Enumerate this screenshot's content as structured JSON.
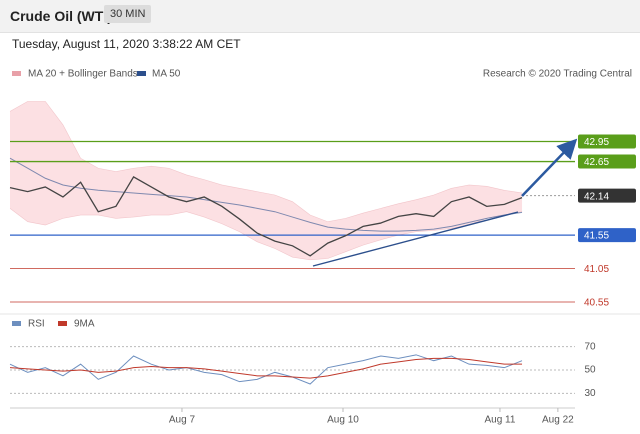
{
  "header": {
    "title": "Crude Oil (WTI)",
    "interval": "30 MIN",
    "timestamp": "Tuesday, August 11, 2020 3:38:22 AM CET",
    "credit": "Research © 2020 Trading Central"
  },
  "chart_data": [
    {
      "type": "line",
      "categories": [
        null,
        null,
        null,
        null,
        null,
        null,
        null,
        null,
        null,
        null,
        null,
        null,
        null,
        null,
        null,
        null,
        null,
        null,
        null,
        null,
        null,
        null,
        null,
        null,
        null,
        null,
        null,
        null,
        null,
        null
      ],
      "xlim": [
        0,
        32
      ],
      "ylim": [
        40.4,
        43.75
      ],
      "price": {
        "color": "#444444",
        "values": [
          42.26,
          42.2,
          42.27,
          42.12,
          42.34,
          41.9,
          41.98,
          42.42,
          42.27,
          42.12,
          42.05,
          42.12,
          41.98,
          41.79,
          41.58,
          41.46,
          41.39,
          41.24,
          41.43,
          41.54,
          41.68,
          41.73,
          41.83,
          41.87,
          41.83,
          42.05,
          42.12,
          41.98,
          42.01,
          42.11
        ]
      },
      "series": [
        {
          "name": "MA 20 + Bollinger Bands",
          "color": "#e8a0a8",
          "upper": [
            43.4,
            43.55,
            43.55,
            43.2,
            42.7,
            42.55,
            42.5,
            42.55,
            42.58,
            42.55,
            42.45,
            42.38,
            42.3,
            42.25,
            42.2,
            42.15,
            42.05,
            41.85,
            41.75,
            41.8,
            41.88,
            41.95,
            42.02,
            42.08,
            42.15,
            42.25,
            42.3,
            42.28,
            42.22,
            42.18
          ],
          "lower": [
            41.95,
            41.75,
            41.7,
            41.8,
            41.85,
            41.85,
            41.8,
            41.82,
            41.85,
            41.85,
            41.9,
            41.82,
            41.72,
            41.6,
            41.45,
            41.35,
            41.22,
            41.18,
            41.2,
            41.3,
            41.4,
            41.48,
            41.55,
            41.6,
            41.62,
            41.65,
            41.7,
            41.8,
            41.85,
            41.9
          ]
        },
        {
          "name": "MA 50",
          "color": "#2c4f8c",
          "values": [
            42.7,
            42.55,
            42.4,
            42.3,
            42.25,
            42.22,
            42.2,
            42.18,
            42.16,
            42.14,
            42.12,
            42.08,
            42.04,
            42.0,
            41.95,
            41.9,
            41.82,
            41.74,
            41.67,
            41.64,
            41.62,
            41.61,
            41.61,
            41.62,
            41.64,
            41.68,
            41.74,
            41.8,
            41.85,
            41.89
          ]
        }
      ],
      "levels": [
        {
          "value": 42.95,
          "color": "#5a9e1a",
          "boxed": true
        },
        {
          "value": 42.65,
          "color": "#5a9e1a",
          "boxed": true
        },
        {
          "value": 41.55,
          "color": "#2f62c8",
          "boxed": true
        },
        {
          "value": 41.05,
          "color": "#c0392b",
          "boxed": false
        },
        {
          "value": 40.55,
          "color": "#c0392b",
          "boxed": false
        }
      ],
      "last_price": {
        "value": 42.14,
        "color": "#333333"
      }
    },
    {
      "type": "line",
      "categories": [
        null,
        null,
        null,
        null,
        null,
        null,
        null,
        null,
        null,
        null,
        null,
        null,
        null,
        null,
        null,
        null,
        null,
        null,
        null,
        null,
        null,
        null,
        null,
        null,
        null,
        null,
        null,
        null,
        null,
        null
      ],
      "xlim": [
        0,
        32
      ],
      "ylim": [
        20,
        80
      ],
      "yticks": [
        30,
        50,
        70
      ],
      "xticks": [
        {
          "value": 9.74,
          "label": "Aug 7"
        },
        {
          "value": 18.86,
          "label": "Aug 10"
        },
        {
          "value": 27.75,
          "label": "Aug 11"
        },
        {
          "value": 31.03,
          "label": "Aug 22"
        }
      ],
      "series": [
        {
          "name": "RSI",
          "color": "#6d8fbf",
          "values": [
            55,
            48,
            52,
            45,
            55,
            42,
            48,
            62,
            55,
            50,
            52,
            48,
            46,
            40,
            42,
            48,
            44,
            38,
            52,
            55,
            58,
            62,
            60,
            63,
            58,
            62,
            55,
            54,
            52,
            58
          ]
        },
        {
          "name": "9MA",
          "color": "#c0392b",
          "values": [
            52,
            51,
            50,
            49,
            50,
            48,
            49,
            52,
            53,
            52,
            52,
            51,
            49,
            47,
            45,
            45,
            44,
            43,
            45,
            48,
            51,
            55,
            57,
            59,
            60,
            60,
            59,
            57,
            55,
            55
          ]
        }
      ]
    }
  ]
}
